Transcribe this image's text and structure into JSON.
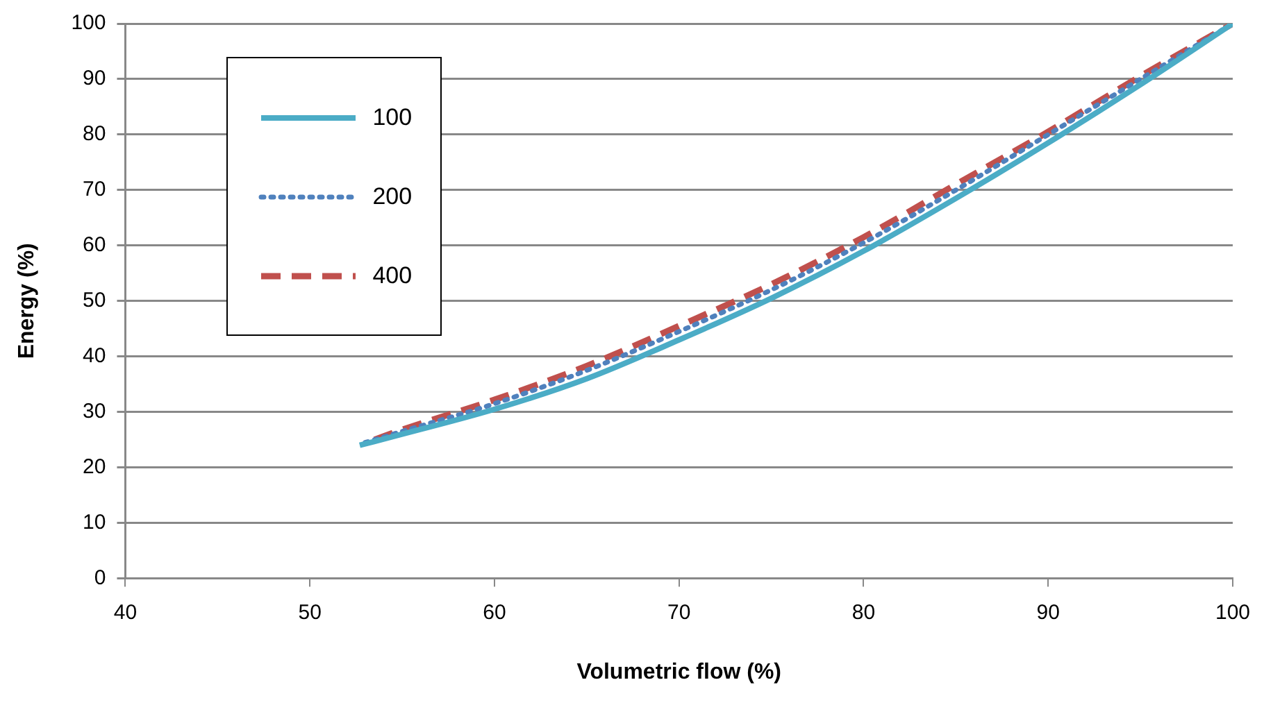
{
  "chart_data": {
    "type": "line",
    "xlabel": "Volumetric flow (%)",
    "ylabel": "Energy (%)",
    "xlim": [
      40,
      100
    ],
    "xticks": [
      40,
      50,
      60,
      70,
      80,
      90,
      100
    ],
    "ylim": [
      0,
      100
    ],
    "yticks": [
      0,
      10,
      20,
      30,
      40,
      50,
      60,
      70,
      80,
      90,
      100
    ],
    "grid": "y",
    "legend": "top left",
    "marker": "none",
    "series": [
      {
        "name": "100",
        "color": "#4bacc6",
        "line_style": "solid",
        "x": [
          52.7,
          55,
          60,
          65,
          70,
          75,
          80,
          85,
          90,
          95,
          100
        ],
        "values": [
          24,
          26,
          30.5,
          36,
          43,
          50.5,
          59,
          68.5,
          78.5,
          89,
          100
        ]
      },
      {
        "name": "200",
        "color": "#4f81bd",
        "line_style": "dotted",
        "x": [
          53,
          55,
          60,
          65,
          70,
          75,
          80,
          85,
          90,
          95,
          100
        ],
        "values": [
          24.5,
          26.5,
          31.5,
          37.5,
          44.5,
          52,
          60.5,
          70,
          80,
          90,
          100
        ]
      },
      {
        "name": "400",
        "color": "#c0504d",
        "line_style": "dashed",
        "x": [
          53.5,
          55,
          60,
          65,
          70,
          75,
          80,
          85,
          90,
          95,
          100
        ],
        "values": [
          25,
          26.8,
          32.2,
          38.3,
          45.5,
          53,
          61.5,
          71,
          80.5,
          90.5,
          100
        ]
      }
    ]
  }
}
